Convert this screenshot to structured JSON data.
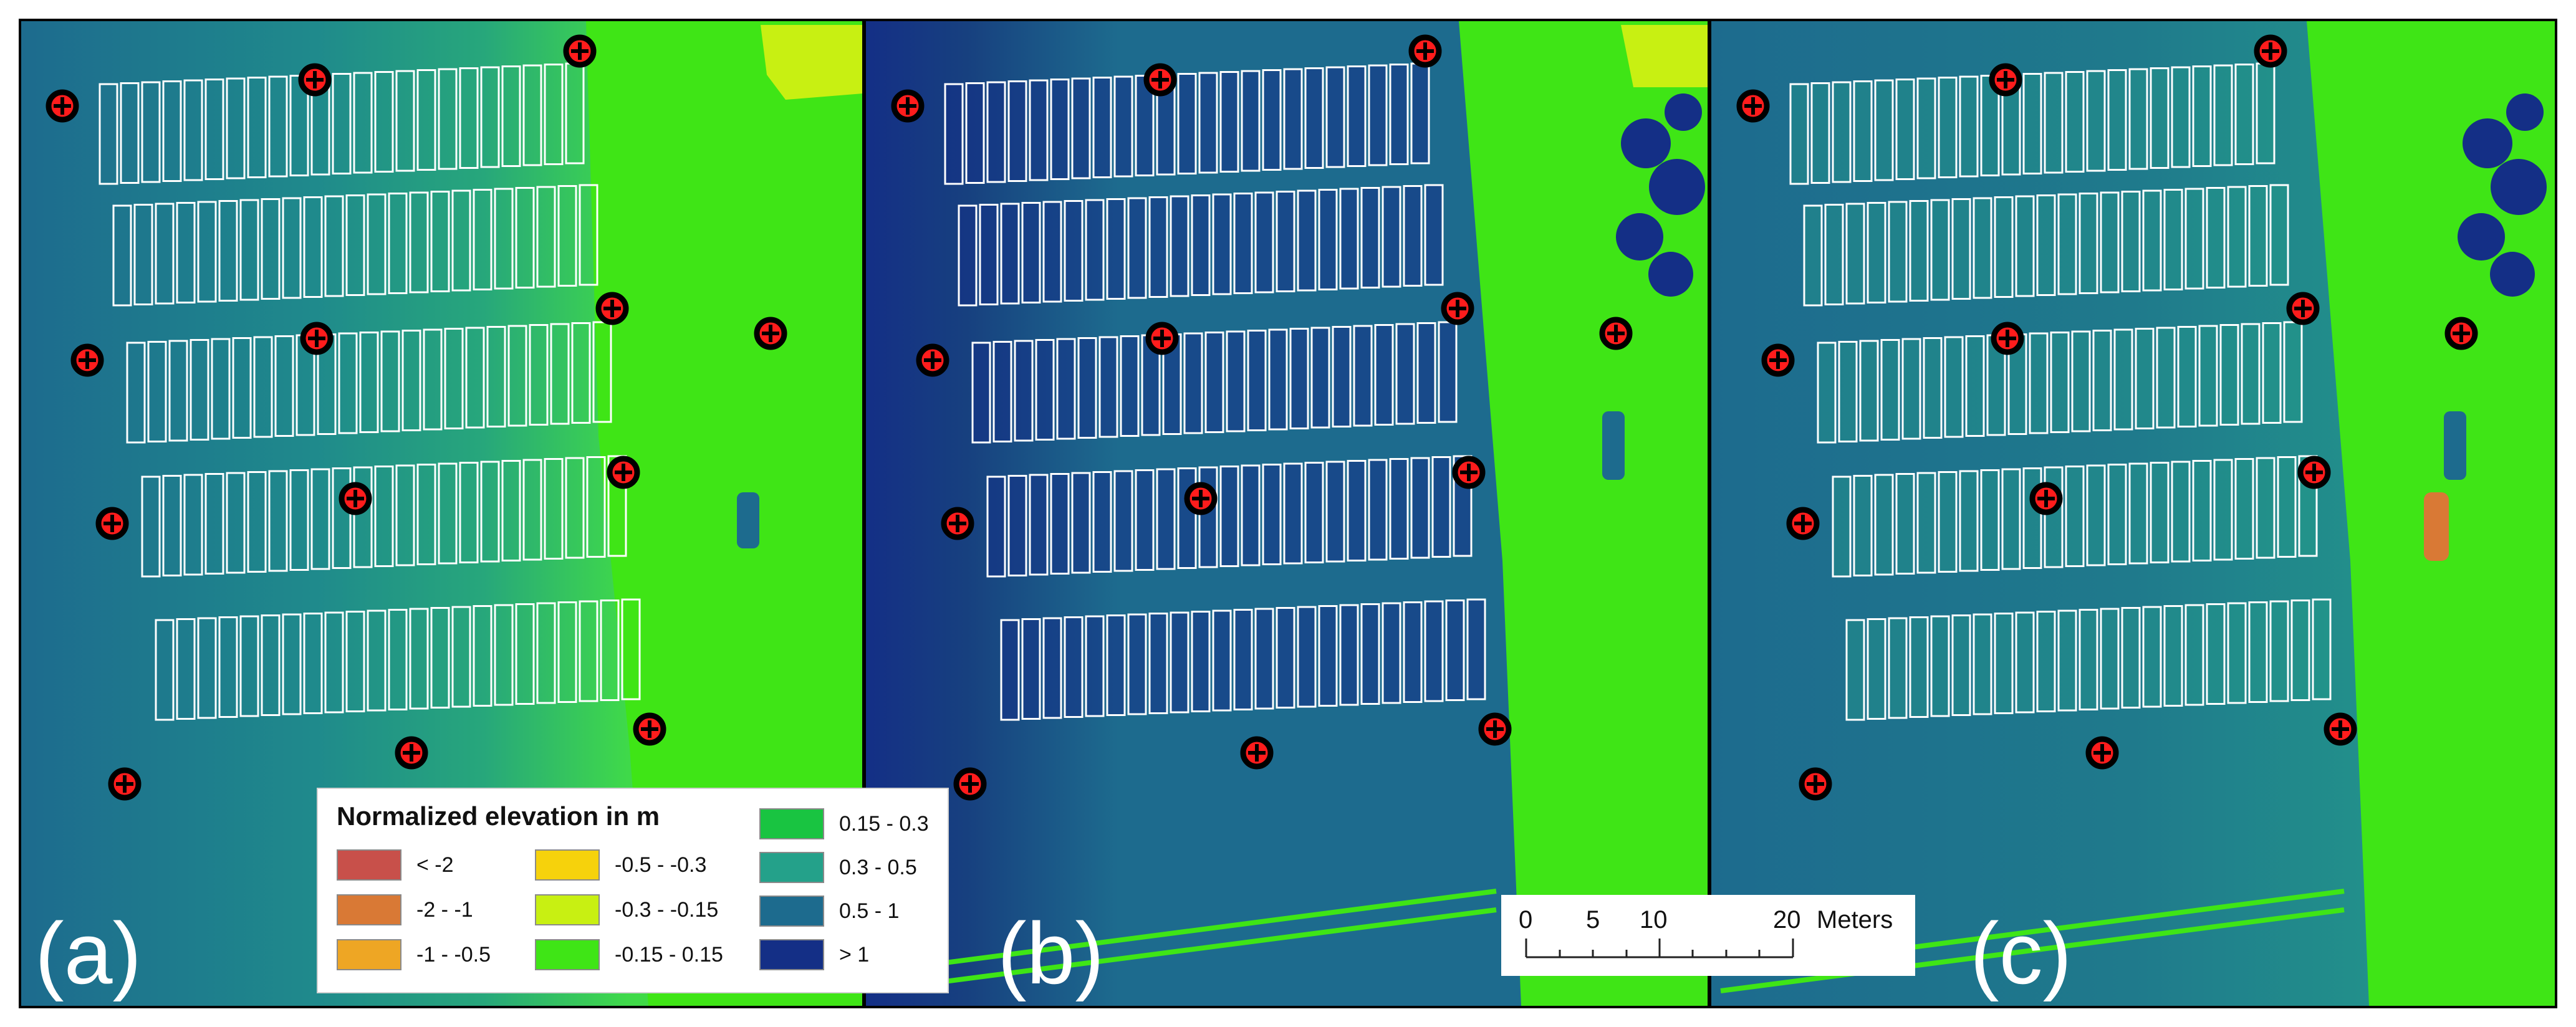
{
  "figure": {
    "panels": [
      {
        "label": "(a)",
        "layer": "normalized elevation, panel a"
      },
      {
        "label": "(b)",
        "layer": "normalized elevation, panel b"
      },
      {
        "label": "(c)",
        "layer": "normalized elevation, panel c"
      }
    ]
  },
  "legend": {
    "title": "Normalized elevation in m",
    "entries": [
      {
        "label": "< -2",
        "color": "#c8504a"
      },
      {
        "label": "-2 - -1",
        "color": "#d97935"
      },
      {
        "label": "-1 - -0.5",
        "color": "#eea624"
      },
      {
        "label": "-0.5 - -0.3",
        "color": "#f6d20c"
      },
      {
        "label": "-0.3 - -0.15",
        "color": "#c8f012"
      },
      {
        "label": "-0.15 - 0.15",
        "color": "#3fe516"
      },
      {
        "label": "0.15 - 0.3",
        "color": "#19c441"
      },
      {
        "label": "0.3 - 0.5",
        "color": "#24a18a"
      },
      {
        "label": "0.5 - 1",
        "color": "#1d6b8e"
      },
      {
        "label": "> 1",
        "color": "#142f86"
      }
    ]
  },
  "scalebar": {
    "ticks": [
      "0",
      "5",
      "10",
      "20"
    ],
    "unit": "Meters"
  },
  "colors": {
    "a_left": "#1d6b8e",
    "a_mid": "#24a18a",
    "a_right": "#3fe516",
    "b_dark": "#142f86",
    "b_mid": "#1d6b8e",
    "c_mid": "#24a18a",
    "marker_fill": "#ff1c1c",
    "marker_ring": "#000000"
  }
}
